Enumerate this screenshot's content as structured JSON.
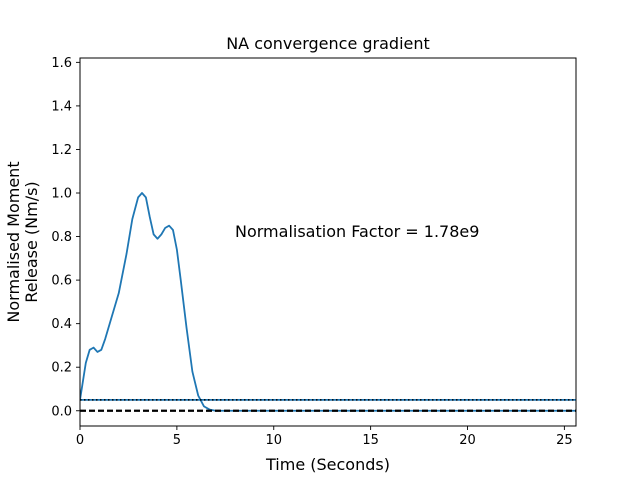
{
  "chart_data": {
    "type": "line",
    "title": "NA convergence gradient",
    "xlabel": "Time (Seconds)",
    "ylabel_lines": [
      "Normalised Moment",
      "Release (Nm/s)"
    ],
    "annotation": "Normalisation Factor = 1.78e9",
    "xlim": [
      0,
      25.6
    ],
    "ylim": [
      -0.07,
      1.62
    ],
    "xticks": [
      0,
      5,
      10,
      15,
      20,
      25
    ],
    "xtick_labels": [
      "0",
      "5",
      "10",
      "15",
      "20",
      "25"
    ],
    "yticks": [
      0.0,
      0.2,
      0.4,
      0.6,
      0.8,
      1.0,
      1.2,
      1.4,
      1.6
    ],
    "ytick_labels": [
      "0.0",
      "0.2",
      "0.4",
      "0.6",
      "0.8",
      "1.0",
      "1.2",
      "1.4",
      "1.6"
    ],
    "grid": false,
    "series": [
      {
        "color": "#1f77b4",
        "style": "solid",
        "x": [
          0,
          0.3,
          0.5,
          0.7,
          0.9,
          1.1,
          1.3,
          1.6,
          2.0,
          2.4,
          2.7,
          3.0,
          3.2,
          3.4,
          3.6,
          3.8,
          4.0,
          4.2,
          4.4,
          4.6,
          4.8,
          5.0,
          5.2,
          5.5,
          5.8,
          6.1,
          6.4,
          6.7,
          7.0,
          7.5,
          8.0,
          10,
          15,
          20,
          25.6
        ],
        "y": [
          0.05,
          0.22,
          0.28,
          0.29,
          0.27,
          0.28,
          0.33,
          0.42,
          0.54,
          0.72,
          0.88,
          0.98,
          1.0,
          0.98,
          0.89,
          0.81,
          0.79,
          0.81,
          0.84,
          0.85,
          0.83,
          0.74,
          0.6,
          0.38,
          0.18,
          0.07,
          0.02,
          0.005,
          0.0,
          0.0,
          0.0,
          0.0,
          0.0,
          0.0,
          0.0
        ]
      },
      {
        "color": "#1f77b4",
        "style": "solid",
        "x": [
          0,
          25.6
        ],
        "y": [
          0.05,
          0.05
        ]
      },
      {
        "color": "#000000",
        "style": "dotted",
        "x": [
          0,
          25.6
        ],
        "y": [
          0.05,
          0.05
        ]
      },
      {
        "color": "#000000",
        "style": "dashed",
        "x": [
          0,
          25.6
        ],
        "y": [
          0.0,
          0.0
        ]
      }
    ]
  }
}
